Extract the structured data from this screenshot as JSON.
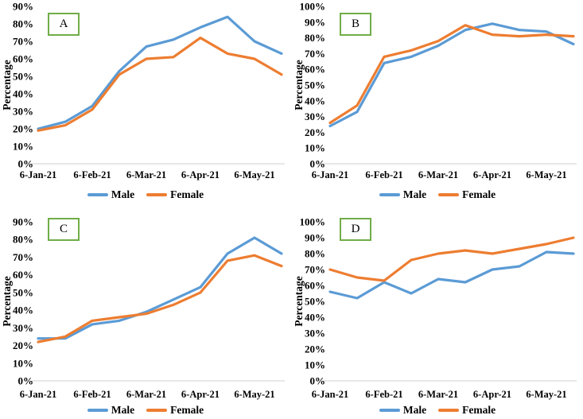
{
  "figure": {
    "background": "#ffffff",
    "y_axis_title": "Percentage"
  },
  "colors": {
    "male": "#5B9BD5",
    "female": "#ED7D31",
    "axis_line": "#D9D9D9",
    "panel_box_border": "#70AD47",
    "text": "#000000"
  },
  "chart_data": [
    {
      "panel_label": "A",
      "type": "line",
      "y_axis_title": "Percentage",
      "ylim": [
        0,
        90
      ],
      "y_tick_step": 10,
      "y_tick_suffix": "%",
      "grid": false,
      "legend_position": "bottom",
      "x_tick_labels": [
        "6-Jan-21",
        "6-Feb-21",
        "6-Mar-21",
        "6-Apr-21",
        "6-May-21"
      ],
      "x_tick_point_indices": [
        0,
        2,
        4,
        6,
        8
      ],
      "n_points": 10,
      "series": [
        {
          "name": "Male",
          "color": "#5B9BD5",
          "values": [
            20,
            24,
            33,
            53,
            67,
            71,
            78,
            84,
            70,
            63
          ]
        },
        {
          "name": "Female",
          "color": "#ED7D31",
          "values": [
            19,
            22,
            31,
            51,
            60,
            61,
            72,
            63,
            60,
            51
          ]
        }
      ]
    },
    {
      "panel_label": "B",
      "type": "line",
      "y_axis_title": "Percentage",
      "ylim": [
        0,
        100
      ],
      "y_tick_step": 10,
      "y_tick_suffix": "%",
      "grid": false,
      "legend_position": "bottom",
      "x_tick_labels": [
        "6-Jan-21",
        "6-Feb-21",
        "6-Mar-21",
        "6-Apr-21",
        "6-May-21"
      ],
      "x_tick_point_indices": [
        0,
        2,
        4,
        6,
        8
      ],
      "n_points": 10,
      "series": [
        {
          "name": "Male",
          "color": "#5B9BD5",
          "values": [
            24,
            33,
            64,
            68,
            75,
            85,
            89,
            85,
            84,
            76
          ]
        },
        {
          "name": "Female",
          "color": "#ED7D31",
          "values": [
            26,
            37,
            68,
            72,
            78,
            88,
            82,
            81,
            82,
            81
          ]
        }
      ]
    },
    {
      "panel_label": "C",
      "type": "line",
      "y_axis_title": "Percentage",
      "ylim": [
        0,
        90
      ],
      "y_tick_step": 10,
      "y_tick_suffix": "%",
      "grid": false,
      "legend_position": "bottom",
      "x_tick_labels": [
        "6-Jan-21",
        "6-Feb-21",
        "6-Mar-21",
        "6-Apr-21",
        "6-May-21"
      ],
      "x_tick_point_indices": [
        0,
        2,
        4,
        6,
        8
      ],
      "n_points": 10,
      "series": [
        {
          "name": "Male",
          "color": "#5B9BD5",
          "values": [
            24,
            24,
            32,
            34,
            39,
            46,
            53,
            72,
            81,
            72
          ]
        },
        {
          "name": "Female",
          "color": "#ED7D31",
          "values": [
            22,
            25,
            34,
            36,
            38,
            43,
            50,
            68,
            71,
            65
          ]
        }
      ]
    },
    {
      "panel_label": "D",
      "type": "line",
      "y_axis_title": "Percentage",
      "ylim": [
        0,
        100
      ],
      "y_tick_step": 10,
      "y_tick_suffix": "%",
      "grid": false,
      "legend_position": "bottom",
      "x_tick_labels": [
        "6-Jan-21",
        "6-Feb-21",
        "6-Mar-21",
        "6-Apr-21",
        "6-May-21"
      ],
      "x_tick_point_indices": [
        0,
        2,
        4,
        6,
        8
      ],
      "n_points": 10,
      "series": [
        {
          "name": "Male",
          "color": "#5B9BD5",
          "values": [
            56,
            52,
            62,
            55,
            64,
            62,
            70,
            72,
            81,
            80
          ]
        },
        {
          "name": "Female",
          "color": "#ED7D31",
          "values": [
            70,
            65,
            63,
            76,
            80,
            82,
            80,
            83,
            86,
            90
          ]
        }
      ]
    }
  ]
}
